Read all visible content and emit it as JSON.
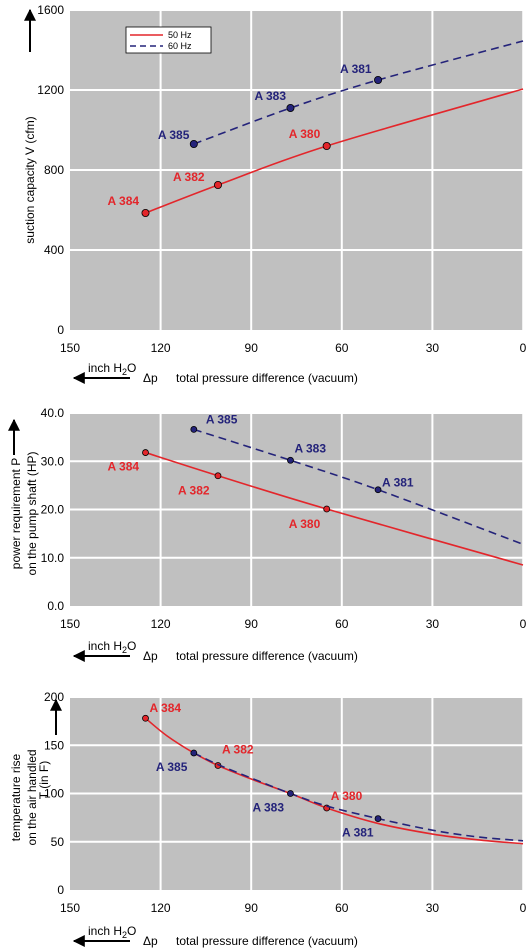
{
  "colors": {
    "series_50": "#e3262b",
    "series_60": "#24237a",
    "plot_bg": "#c0c0c0",
    "grid": "#ffffff"
  },
  "x_unit_prefix": "inch H",
  "x_unit_sub": "2",
  "x_unit_suffix": "O",
  "x_symbol": "Δp",
  "legend": {
    "items": [
      "50 Hz",
      "60 Hz"
    ]
  },
  "chart_data": [
    {
      "type": "line",
      "ylabel": "suction capacity V (cfm)",
      "xlabel": "total pressure difference (vacuum)",
      "xlim": [
        150,
        0
      ],
      "ylim": [
        0,
        1600
      ],
      "xticks": [
        "150",
        "120",
        "90",
        "60",
        "30",
        "0"
      ],
      "yticks": [
        "0",
        "400",
        "800",
        "1200",
        "1600"
      ],
      "series": [
        {
          "name": "50 Hz",
          "style": "solid",
          "x": [
            125,
            101,
            65,
            0
          ],
          "y": [
            585,
            725,
            920,
            1205
          ],
          "points": [
            {
              "x": 125,
              "y": 585,
              "label": "A 384"
            },
            {
              "x": 101,
              "y": 725,
              "label": "A 382"
            },
            {
              "x": 65,
              "y": 920,
              "label": "A 380"
            }
          ]
        },
        {
          "name": "60 Hz",
          "style": "dashed",
          "x": [
            109,
            77,
            48,
            0
          ],
          "y": [
            930,
            1110,
            1250,
            1445
          ],
          "points": [
            {
              "x": 109,
              "y": 930,
              "label": "A 385"
            },
            {
              "x": 77,
              "y": 1110,
              "label": "A 383"
            },
            {
              "x": 48,
              "y": 1250,
              "label": "A 381"
            }
          ]
        }
      ]
    },
    {
      "type": "line",
      "ylabel_line1": "power requirement P",
      "ylabel_line2": "on the pump shaft (HP)",
      "xlabel": "total pressure difference (vacuum)",
      "xlim": [
        150,
        0
      ],
      "ylim": [
        0,
        40
      ],
      "xticks": [
        "150",
        "120",
        "90",
        "60",
        "30",
        "0"
      ],
      "yticks": [
        "0.0",
        "10.0",
        "20.0",
        "30.0",
        "40.0"
      ],
      "series": [
        {
          "name": "50 Hz",
          "style": "solid",
          "x": [
            125,
            101,
            65,
            0
          ],
          "y": [
            31.8,
            27.0,
            20.1,
            8.5
          ],
          "points": [
            {
              "x": 125,
              "y": 31.8,
              "label": "A 384"
            },
            {
              "x": 101,
              "y": 27.0,
              "label": "A 382"
            },
            {
              "x": 65,
              "y": 20.1,
              "label": "A 380"
            }
          ]
        },
        {
          "name": "60 Hz",
          "style": "dashed",
          "x": [
            109,
            77,
            48,
            0
          ],
          "y": [
            36.6,
            30.2,
            24.1,
            12.8
          ],
          "points": [
            {
              "x": 109,
              "y": 36.6,
              "label": "A 385"
            },
            {
              "x": 77,
              "y": 30.2,
              "label": "A 383"
            },
            {
              "x": 48,
              "y": 24.1,
              "label": "A 381"
            }
          ]
        }
      ]
    },
    {
      "type": "line",
      "ylabel_line1": "temperature rise",
      "ylabel_line2": "on the air handled",
      "ylabel_extra": "T   (in F)",
      "xlabel": "total pressure difference (vacuum)",
      "xlim": [
        150,
        0
      ],
      "ylim": [
        0,
        200
      ],
      "xticks": [
        "150",
        "120",
        "90",
        "60",
        "30",
        "0"
      ],
      "yticks": [
        "0",
        "50",
        "100",
        "150",
        "200"
      ],
      "series": [
        {
          "name": "50 Hz",
          "style": "solid",
          "x": [
            125,
            118,
            109,
            101,
            90,
            77,
            65,
            48,
            30,
            15,
            0
          ],
          "y": [
            178,
            160,
            142,
            129,
            115,
            100,
            85,
            69,
            58,
            52,
            48
          ],
          "points": [
            {
              "x": 125,
              "y": 178,
              "label": "A 384"
            },
            {
              "x": 101,
              "y": 129,
              "label": "A 382"
            },
            {
              "x": 65,
              "y": 85,
              "label": "A 380"
            }
          ]
        },
        {
          "name": "60 Hz",
          "style": "dashed",
          "x": [
            109,
            101,
            90,
            77,
            65,
            48,
            30,
            15,
            0
          ],
          "y": [
            142,
            130,
            116,
            100,
            87,
            74,
            62,
            55,
            51
          ],
          "points": [
            {
              "x": 109,
              "y": 142,
              "label": "A 385"
            },
            {
              "x": 77,
              "y": 100,
              "label": "A 383"
            },
            {
              "x": 48,
              "y": 74,
              "label": "A 381"
            }
          ]
        }
      ]
    }
  ]
}
